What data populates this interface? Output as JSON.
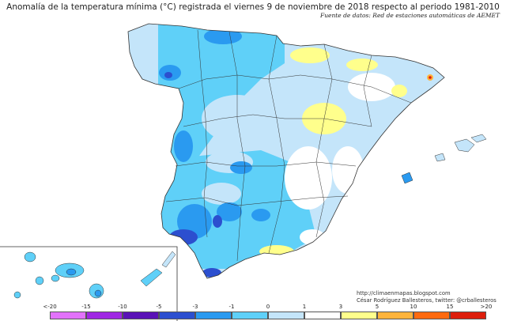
{
  "title": "Anomalía de la temperatura mínima (°C) registrada el viernes 9 de noviembre de 2018 respecto al periodo 1981-2010",
  "source": "Fuente de datos: Red de estaciones automáticas de AEMET",
  "credits": {
    "url": "http://climaenmapas.blogspot.com",
    "author": "César Rodríguez Ballesteros, twitter: @crballesteros"
  },
  "legend": {
    "tick_labels": [
      "<-20",
      "-15",
      "-10",
      "-5",
      "-3",
      "-1",
      "0",
      "1",
      "3",
      "5",
      "10",
      "15",
      ">20"
    ],
    "colors": [
      "#e272fb",
      "#9f27e3",
      "#5a12b6",
      "#2c4fcf",
      "#2a9af0",
      "#5fd0f8",
      "#c4e5fa",
      "#ffffff",
      "#ffff8c",
      "#ffb43c",
      "#ff6a0f",
      "#dd1e0c",
      "#8e1105"
    ]
  }
}
